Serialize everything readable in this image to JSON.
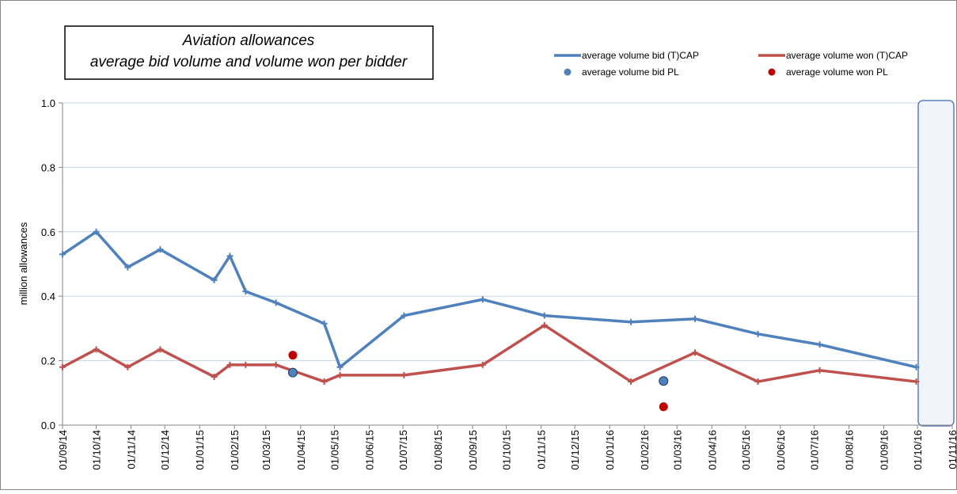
{
  "chart_data": {
    "type": "line",
    "title": "Aviation allowances",
    "subtitle": "average bid volume and volume won per bidder",
    "y_label": "million allowances",
    "xlim": [
      "2014-09-01",
      "2016-11-01"
    ],
    "xticks": [
      {
        "value": "2014-09-01",
        "label": "01/09/14"
      },
      {
        "value": "2014-10-01",
        "label": "01/10/14"
      },
      {
        "value": "2014-11-01",
        "label": "01/11/14"
      },
      {
        "value": "2014-12-01",
        "label": "01/12/14"
      },
      {
        "value": "2015-01-01",
        "label": "01/01/15"
      },
      {
        "value": "2015-02-01",
        "label": "01/02/15"
      },
      {
        "value": "2015-03-01",
        "label": "01/03/15"
      },
      {
        "value": "2015-04-01",
        "label": "01/04/15"
      },
      {
        "value": "2015-05-01",
        "label": "01/05/15"
      },
      {
        "value": "2015-06-01",
        "label": "01/06/15"
      },
      {
        "value": "2015-07-01",
        "label": "01/07/15"
      },
      {
        "value": "2015-08-01",
        "label": "01/08/15"
      },
      {
        "value": "2015-09-01",
        "label": "01/09/15"
      },
      {
        "value": "2015-10-01",
        "label": "01/10/15"
      },
      {
        "value": "2015-11-01",
        "label": "01/11/15"
      },
      {
        "value": "2015-12-01",
        "label": "01/12/15"
      },
      {
        "value": "2016-01-01",
        "label": "01/01/16"
      },
      {
        "value": "2016-02-01",
        "label": "01/02/16"
      },
      {
        "value": "2016-03-01",
        "label": "01/03/16"
      },
      {
        "value": "2016-04-01",
        "label": "01/04/16"
      },
      {
        "value": "2016-05-01",
        "label": "01/05/16"
      },
      {
        "value": "2016-06-01",
        "label": "01/06/16"
      },
      {
        "value": "2016-07-01",
        "label": "01/07/16"
      },
      {
        "value": "2016-08-01",
        "label": "01/08/16"
      },
      {
        "value": "2016-09-01",
        "label": "01/09/16"
      },
      {
        "value": "2016-10-01",
        "label": "01/10/16"
      },
      {
        "value": "2016-11-01",
        "label": "01/11/16"
      }
    ],
    "ylim": [
      0,
      1
    ],
    "yticks": [
      {
        "value": 0,
        "label": "0.0"
      },
      0.2,
      0.4,
      0.6,
      0.8,
      {
        "value": 1,
        "label": "1.0"
      }
    ],
    "grid": true,
    "series": [
      {
        "name": "average volume bid (T)CAP",
        "color": "#4f81bd",
        "style": "line",
        "x": [
          "2014-09-01",
          "2014-10-01",
          "2014-10-29",
          "2014-11-27",
          "2015-01-14",
          "2015-01-28",
          "2015-02-11",
          "2015-03-10",
          "2015-04-22",
          "2015-05-06",
          "2015-07-02",
          "2015-09-10",
          "2015-11-04",
          "2016-01-20",
          "2016-03-17",
          "2016-05-12",
          "2016-07-06",
          "2016-09-30"
        ],
        "values": [
          0.53,
          0.6,
          0.49,
          0.545,
          0.45,
          0.525,
          0.415,
          0.38,
          0.315,
          0.18,
          0.34,
          0.39,
          0.34,
          0.32,
          0.33,
          0.283,
          0.25,
          0.18
        ]
      },
      {
        "name": "average volume won (T)CAP",
        "color": "#c0504d",
        "style": "line",
        "x": [
          "2014-09-01",
          "2014-10-01",
          "2014-10-29",
          "2014-11-27",
          "2015-01-14",
          "2015-01-28",
          "2015-02-11",
          "2015-03-10",
          "2015-04-22",
          "2015-05-06",
          "2015-07-02",
          "2015-09-10",
          "2015-11-04",
          "2016-01-20",
          "2016-03-17",
          "2016-05-12",
          "2016-07-06",
          "2016-09-30"
        ],
        "values": [
          0.18,
          0.235,
          0.18,
          0.235,
          0.15,
          0.187,
          0.187,
          0.187,
          0.135,
          0.155,
          0.155,
          0.187,
          0.31,
          0.135,
          0.225,
          0.135,
          0.17,
          0.135
        ]
      },
      {
        "name": "average volume bid PL",
        "color": "#4f81bd",
        "style": "point",
        "x": [
          "2015-03-25",
          "2016-02-18"
        ],
        "values": [
          0.163,
          0.137
        ]
      },
      {
        "name": "average volume won PL",
        "color": "#c00000",
        "style": "point",
        "x": [
          "2015-03-25",
          "2016-02-18"
        ],
        "values": [
          0.217,
          0.057
        ]
      }
    ]
  }
}
